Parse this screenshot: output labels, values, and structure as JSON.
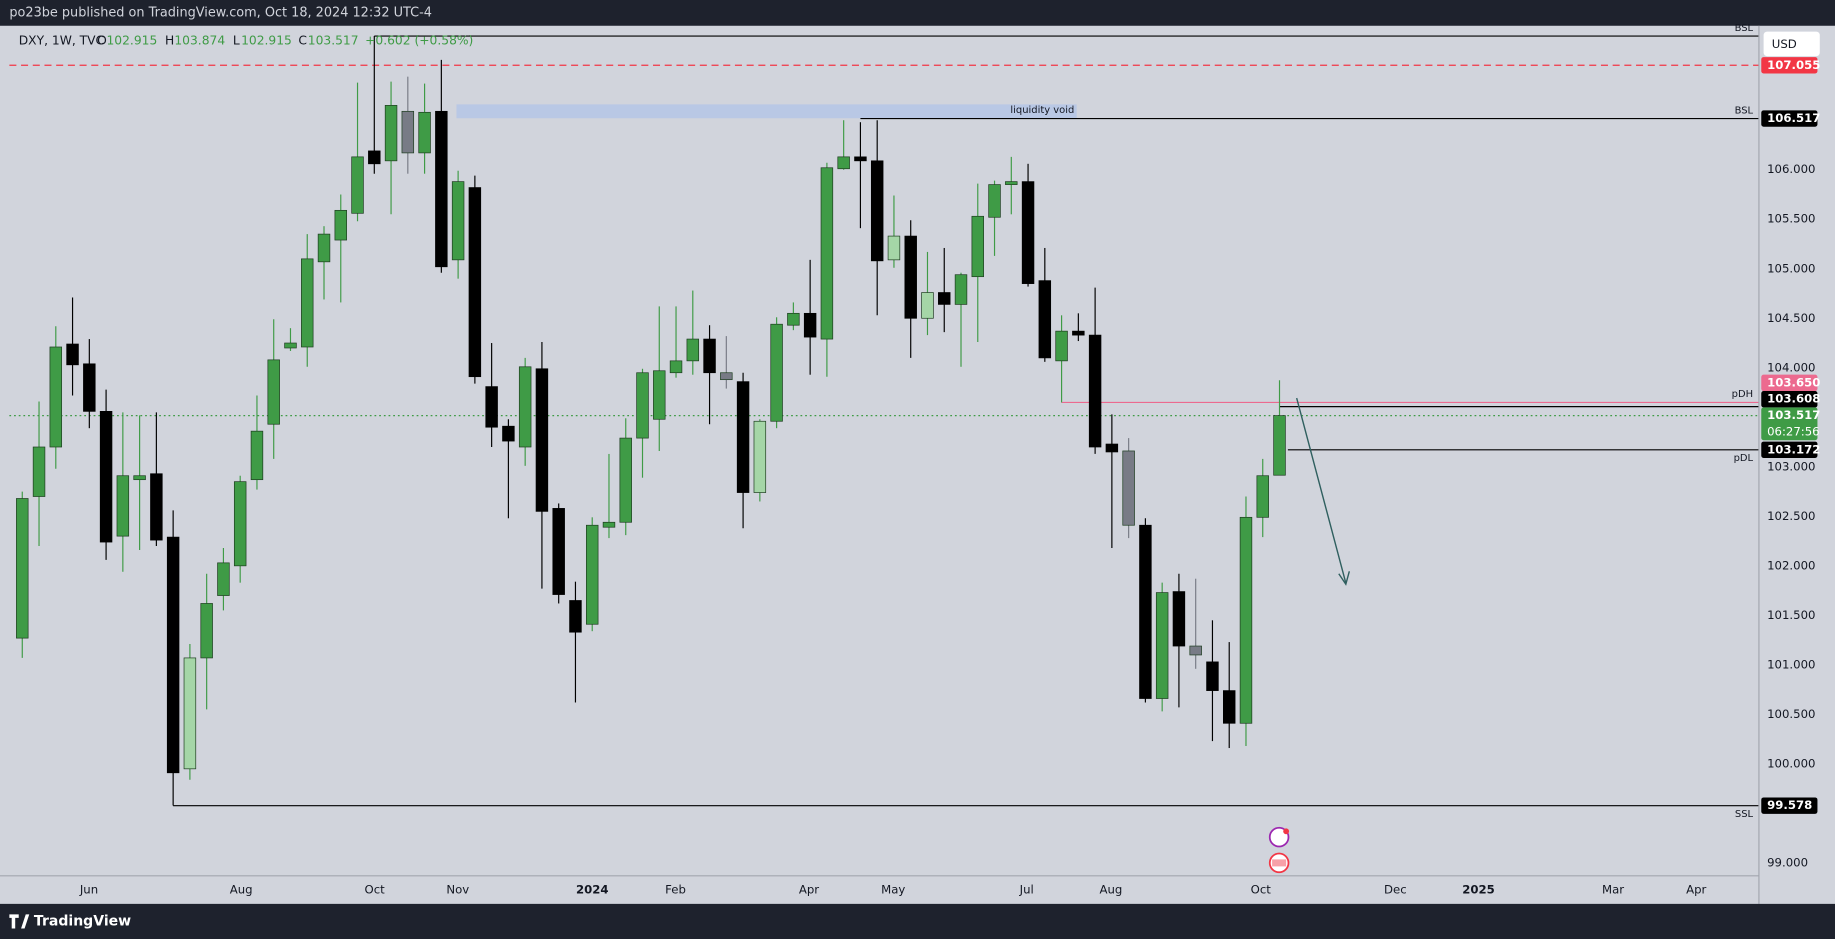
{
  "header": {
    "publisher": "po23be published on TradingView.com, Oct 18, 2024 12:32 UTC-4"
  },
  "footer": {
    "brand": "TradingView"
  },
  "chart_data": {
    "type": "candlestick",
    "currency": "USD",
    "legend": {
      "symbol": "DXY, 1W, TVC",
      "items": [
        {
          "key": "O",
          "value": "102.915"
        },
        {
          "key": "H",
          "value": "103.874"
        },
        {
          "key": "L",
          "value": "102.915"
        },
        {
          "key": "C",
          "value": "103.517"
        }
      ],
      "change": "+0.602 (+0.58%)"
    },
    "xlim": [
      -0.77,
      103.6
    ],
    "xticks": [
      {
        "value": 3.98,
        "label": "Jun"
      },
      {
        "value": 13.06,
        "label": "Aug"
      },
      {
        "value": 21.02,
        "label": "Oct"
      },
      {
        "value": 25.98,
        "label": "Nov"
      },
      {
        "value": 34.0,
        "label": "2024"
      },
      {
        "value": 38.97,
        "label": "Feb"
      },
      {
        "value": 46.93,
        "label": "Apr"
      },
      {
        "value": 51.96,
        "label": "May"
      },
      {
        "value": 59.92,
        "label": "Jul"
      },
      {
        "value": 64.94,
        "label": "Aug"
      },
      {
        "value": 73.88,
        "label": "Oct"
      },
      {
        "value": 81.91,
        "label": "Dec"
      },
      {
        "value": 86.87,
        "label": "2025"
      },
      {
        "value": 94.9,
        "label": "Mar"
      },
      {
        "value": 99.86,
        "label": "Apr"
      }
    ],
    "ylim": [
      98.87,
      107.454
    ],
    "yticks": [
      {
        "value": 99,
        "label": "99.000"
      },
      {
        "value": 100,
        "label": "100.000"
      },
      {
        "value": 100.5,
        "label": "100.500"
      },
      {
        "value": 101,
        "label": "101.000"
      },
      {
        "value": 101.5,
        "label": "101.500"
      },
      {
        "value": 102,
        "label": "102.000"
      },
      {
        "value": 102.5,
        "label": "102.500"
      },
      {
        "value": 103,
        "label": "103.000"
      },
      {
        "value": 104,
        "label": "104.000"
      },
      {
        "value": 104.5,
        "label": "104.500"
      },
      {
        "value": 105,
        "label": "105.000"
      },
      {
        "value": 105.5,
        "label": "105.500"
      },
      {
        "value": 106,
        "label": "106.000"
      }
    ],
    "grid": false,
    "candles": [
      {
        "o": 101.27,
        "h": 102.75,
        "l": 101.07,
        "c": 102.68,
        "color": "#3f9b46"
      },
      {
        "o": 102.7,
        "h": 103.66,
        "l": 102.2,
        "c": 103.2,
        "color": "#3f9b46"
      },
      {
        "o": 103.2,
        "h": 104.42,
        "l": 102.98,
        "c": 104.21,
        "color": "#3f9b46"
      },
      {
        "o": 104.24,
        "h": 104.71,
        "l": 103.72,
        "c": 104.03,
        "color": "#000000"
      },
      {
        "o": 104.04,
        "h": 104.29,
        "l": 103.39,
        "c": 103.56,
        "color": "#000000"
      },
      {
        "o": 103.56,
        "h": 103.78,
        "l": 102.06,
        "c": 102.24,
        "color": "#000000"
      },
      {
        "o": 102.3,
        "h": 103.55,
        "l": 101.94,
        "c": 102.91,
        "color": "#3f9b46"
      },
      {
        "o": 102.87,
        "h": 103.52,
        "l": 102.16,
        "c": 102.91,
        "color": "#3f9b46"
      },
      {
        "o": 102.93,
        "h": 103.55,
        "l": 102.2,
        "c": 102.26,
        "color": "#000000"
      },
      {
        "o": 102.29,
        "h": 102.56,
        "l": 99.58,
        "c": 99.91,
        "color": "#000000"
      },
      {
        "o": 99.95,
        "h": 101.21,
        "l": 99.84,
        "c": 101.07,
        "color": "#a5d6a7"
      },
      {
        "o": 101.07,
        "h": 101.92,
        "l": 100.55,
        "c": 101.62,
        "color": "#3f9b46"
      },
      {
        "o": 101.7,
        "h": 102.18,
        "l": 101.55,
        "c": 102.03,
        "color": "#3f9b46"
      },
      {
        "o": 102.0,
        "h": 102.91,
        "l": 101.83,
        "c": 102.85,
        "color": "#3f9b46"
      },
      {
        "o": 102.87,
        "h": 103.72,
        "l": 102.77,
        "c": 103.36,
        "color": "#3f9b46"
      },
      {
        "o": 103.43,
        "h": 104.49,
        "l": 103.08,
        "c": 104.08,
        "color": "#3f9b46"
      },
      {
        "o": 104.2,
        "h": 104.4,
        "l": 104.17,
        "c": 104.25,
        "color": "#3f9b46"
      },
      {
        "o": 104.21,
        "h": 105.35,
        "l": 104.01,
        "c": 105.1,
        "color": "#3f9b46"
      },
      {
        "o": 105.07,
        "h": 105.43,
        "l": 104.69,
        "c": 105.35,
        "color": "#3f9b46"
      },
      {
        "o": 105.29,
        "h": 105.75,
        "l": 104.66,
        "c": 105.59,
        "color": "#3f9b46"
      },
      {
        "o": 105.56,
        "h": 106.88,
        "l": 105.48,
        "c": 106.13,
        "color": "#3f9b46"
      },
      {
        "o": 106.19,
        "h": 107.35,
        "l": 105.96,
        "c": 106.06,
        "color": "#000000"
      },
      {
        "o": 106.09,
        "h": 106.89,
        "l": 105.55,
        "c": 106.65,
        "color": "#3f9b46"
      },
      {
        "o": 106.59,
        "h": 106.94,
        "l": 105.96,
        "c": 106.17,
        "color": "#787b86"
      },
      {
        "o": 106.17,
        "h": 106.87,
        "l": 105.96,
        "c": 106.58,
        "color": "#3f9b46"
      },
      {
        "o": 106.59,
        "h": 107.11,
        "l": 104.96,
        "c": 105.02,
        "color": "#000000"
      },
      {
        "o": 105.09,
        "h": 105.99,
        "l": 104.9,
        "c": 105.88,
        "color": "#3f9b46"
      },
      {
        "o": 105.82,
        "h": 105.94,
        "l": 103.84,
        "c": 103.91,
        "color": "#000000"
      },
      {
        "o": 103.81,
        "h": 104.25,
        "l": 103.2,
        "c": 103.4,
        "color": "#000000"
      },
      {
        "o": 103.41,
        "h": 103.48,
        "l": 102.48,
        "c": 103.26,
        "color": "#000000"
      },
      {
        "o": 103.2,
        "h": 104.1,
        "l": 103.01,
        "c": 104.01,
        "color": "#3f9b46"
      },
      {
        "o": 103.99,
        "h": 104.26,
        "l": 101.77,
        "c": 102.55,
        "color": "#000000"
      },
      {
        "o": 102.58,
        "h": 102.63,
        "l": 101.62,
        "c": 101.71,
        "color": "#000000"
      },
      {
        "o": 101.65,
        "h": 101.84,
        "l": 100.62,
        "c": 101.33,
        "color": "#000000"
      },
      {
        "o": 101.41,
        "h": 102.49,
        "l": 101.34,
        "c": 102.41,
        "color": "#3f9b46"
      },
      {
        "o": 102.39,
        "h": 103.13,
        "l": 102.28,
        "c": 102.44,
        "color": "#3f9b46"
      },
      {
        "o": 102.44,
        "h": 103.49,
        "l": 102.31,
        "c": 103.29,
        "color": "#3f9b46"
      },
      {
        "o": 103.29,
        "h": 103.99,
        "l": 102.89,
        "c": 103.95,
        "color": "#3f9b46"
      },
      {
        "o": 103.48,
        "h": 104.62,
        "l": 103.16,
        "c": 103.97,
        "color": "#3f9b46"
      },
      {
        "o": 103.95,
        "h": 104.62,
        "l": 103.9,
        "c": 104.07,
        "color": "#3f9b46"
      },
      {
        "o": 104.07,
        "h": 104.78,
        "l": 103.93,
        "c": 104.29,
        "color": "#3f9b46"
      },
      {
        "o": 104.29,
        "h": 104.43,
        "l": 103.43,
        "c": 103.95,
        "color": "#000000"
      },
      {
        "o": 103.95,
        "h": 104.32,
        "l": 103.79,
        "c": 103.88,
        "color": "#787b86"
      },
      {
        "o": 103.86,
        "h": 103.95,
        "l": 102.38,
        "c": 102.74,
        "color": "#000000"
      },
      {
        "o": 102.74,
        "h": 103.48,
        "l": 102.65,
        "c": 103.46,
        "color": "#a5d6a7"
      },
      {
        "o": 103.46,
        "h": 104.51,
        "l": 103.39,
        "c": 104.44,
        "color": "#3f9b46"
      },
      {
        "o": 104.43,
        "h": 104.66,
        "l": 104.38,
        "c": 104.55,
        "color": "#3f9b46"
      },
      {
        "o": 104.55,
        "h": 105.09,
        "l": 103.93,
        "c": 104.31,
        "color": "#000000"
      },
      {
        "o": 104.29,
        "h": 106.07,
        "l": 103.91,
        "c": 106.02,
        "color": "#3f9b46"
      },
      {
        "o": 106.01,
        "h": 106.5,
        "l": 106.0,
        "c": 106.13,
        "color": "#3f9b46"
      },
      {
        "o": 106.13,
        "h": 106.48,
        "l": 105.41,
        "c": 106.09,
        "color": "#000000"
      },
      {
        "o": 106.09,
        "h": 106.5,
        "l": 104.53,
        "c": 105.08,
        "color": "#000000"
      },
      {
        "o": 105.09,
        "h": 105.74,
        "l": 105.01,
        "c": 105.33,
        "color": "#a5d6a7"
      },
      {
        "o": 105.33,
        "h": 105.49,
        "l": 104.1,
        "c": 104.5,
        "color": "#000000"
      },
      {
        "o": 104.5,
        "h": 105.17,
        "l": 104.33,
        "c": 104.76,
        "color": "#a5d6a7"
      },
      {
        "o": 104.76,
        "h": 105.21,
        "l": 104.36,
        "c": 104.64,
        "color": "#000000"
      },
      {
        "o": 104.64,
        "h": 104.96,
        "l": 104.01,
        "c": 104.94,
        "color": "#3f9b46"
      },
      {
        "o": 104.92,
        "h": 105.86,
        "l": 104.26,
        "c": 105.53,
        "color": "#3f9b46"
      },
      {
        "o": 105.52,
        "h": 105.89,
        "l": 105.13,
        "c": 105.85,
        "color": "#3f9b46"
      },
      {
        "o": 105.85,
        "h": 106.13,
        "l": 105.55,
        "c": 105.88,
        "color": "#3f9b46"
      },
      {
        "o": 105.88,
        "h": 106.06,
        "l": 104.82,
        "c": 104.85,
        "color": "#000000"
      },
      {
        "o": 104.88,
        "h": 105.21,
        "l": 104.06,
        "c": 104.1,
        "color": "#000000"
      },
      {
        "o": 104.07,
        "h": 104.53,
        "l": 103.65,
        "c": 104.37,
        "color": "#3f9b46"
      },
      {
        "o": 104.37,
        "h": 104.55,
        "l": 104.27,
        "c": 104.33,
        "color": "#000000"
      },
      {
        "o": 104.33,
        "h": 104.81,
        "l": 103.13,
        "c": 103.2,
        "color": "#000000"
      },
      {
        "o": 103.23,
        "h": 103.53,
        "l": 102.18,
        "c": 103.15,
        "color": "#000000"
      },
      {
        "o": 103.16,
        "h": 103.29,
        "l": 102.28,
        "c": 102.41,
        "color": "#787b86"
      },
      {
        "o": 102.41,
        "h": 102.48,
        "l": 100.62,
        "c": 100.66,
        "color": "#000000"
      },
      {
        "o": 100.66,
        "h": 101.83,
        "l": 100.53,
        "c": 101.73,
        "color": "#3f9b46"
      },
      {
        "o": 101.74,
        "h": 101.92,
        "l": 100.57,
        "c": 101.19,
        "color": "#000000"
      },
      {
        "o": 101.19,
        "h": 101.87,
        "l": 100.96,
        "c": 101.1,
        "color": "#787b86"
      },
      {
        "o": 101.03,
        "h": 101.45,
        "l": 100.23,
        "c": 100.74,
        "color": "#000000"
      },
      {
        "o": 100.74,
        "h": 101.23,
        "l": 100.16,
        "c": 100.41,
        "color": "#000000"
      },
      {
        "o": 100.41,
        "h": 102.7,
        "l": 100.18,
        "c": 102.49,
        "color": "#3f9b46"
      },
      {
        "o": 102.49,
        "h": 103.08,
        "l": 102.29,
        "c": 102.91,
        "color": "#3f9b46"
      },
      {
        "o": 102.915,
        "h": 103.874,
        "l": 102.915,
        "c": 103.517,
        "color": "#3f9b46"
      }
    ],
    "zone": {
      "label": "liquidity void",
      "low": 106.52,
      "high": 106.66,
      "start": 25.9,
      "end": 62.9,
      "color": "#b5c6e6"
    },
    "levels": [
      {
        "price": 107.35,
        "start": 21,
        "label": "BSL",
        "label_side": "above",
        "color": "#000000",
        "style": "solid"
      },
      {
        "price": 107.055,
        "start": -0.77,
        "axis_label": "107.055",
        "color": "#f23645",
        "style": "dashed"
      },
      {
        "price": 106.517,
        "start": 50,
        "label": "BSL",
        "label_side": "above",
        "axis_label": "106.517",
        "color": "#000000",
        "style": "solid"
      },
      {
        "price": 103.65,
        "start": 62,
        "label": "pDH",
        "label_side": "above",
        "axis_label": "103.650",
        "color": "#ec6a8f",
        "style": "solid"
      },
      {
        "price": 103.608,
        "start": 75,
        "axis_label": "103.608",
        "color": "#000000",
        "style": "solid"
      },
      {
        "price": 103.517,
        "start": -0.77,
        "axis_label": "103.517",
        "countdown": "06:27:56",
        "color": "#3f9b46",
        "style": "dotted"
      },
      {
        "price": 103.172,
        "start": 75.5,
        "label": "pDL",
        "label_side": "below",
        "axis_label": "103.172",
        "color": "#000000",
        "style": "solid"
      },
      {
        "price": 99.578,
        "start": 9,
        "label": "SSL",
        "label_side": "below",
        "axis_label": "99.578",
        "color": "#000000",
        "style": "solid"
      }
    ]
  }
}
